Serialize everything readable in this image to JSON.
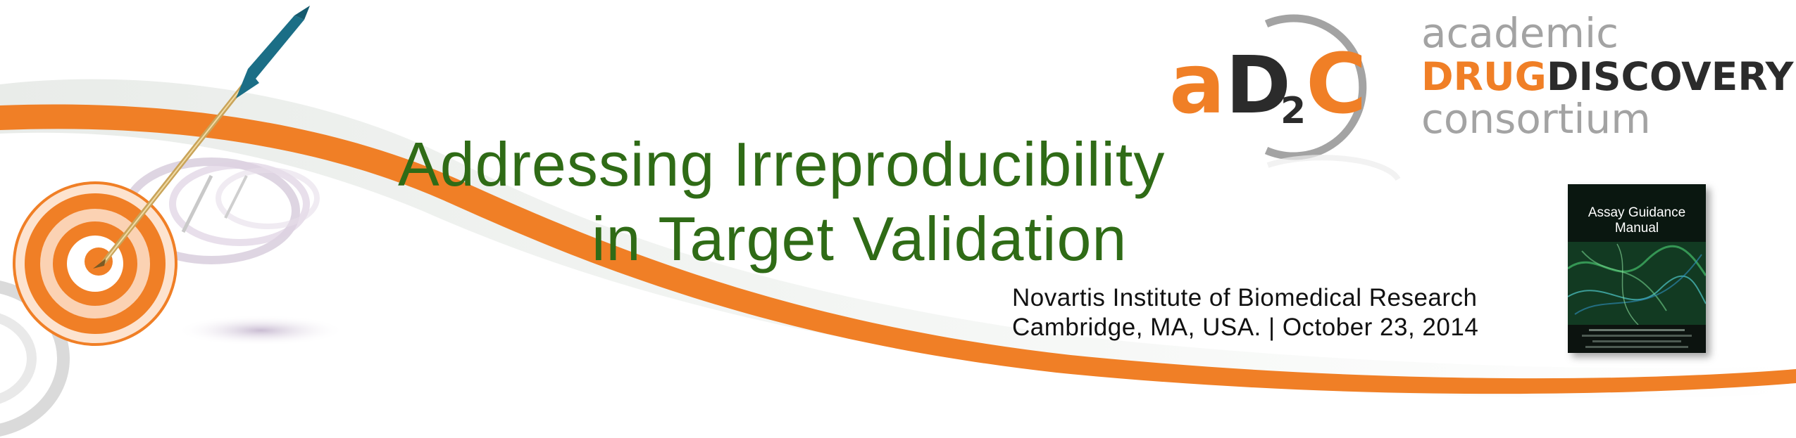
{
  "banner": {
    "title_line1": "Addressing Irreproducibility",
    "title_line2": "in Target Validation",
    "venue_line1": "Novartis Institute of Biomedical Research",
    "venue_line2": "Cambridge, MA, USA. | October 23, 2014"
  },
  "logo": {
    "mark_a": "a",
    "mark_d": "D",
    "mark_sub": "2",
    "mark_c": "C",
    "word_academic": "academic",
    "word_drug": "DRUG",
    "word_discovery": "DISCOVERY",
    "word_consortium": "consortium"
  },
  "book": {
    "title": "Assay Guidance Manual"
  },
  "colors": {
    "title_green": "#2f6b16",
    "accent_orange": "#f07f26",
    "logo_gray": "#a3a3a3",
    "logo_dark": "#2b2b2b",
    "arrow_teal": "#1b6e86"
  },
  "icons": [
    "target-icon",
    "arrow-icon",
    "swoosh-graphic",
    "book-cover"
  ]
}
